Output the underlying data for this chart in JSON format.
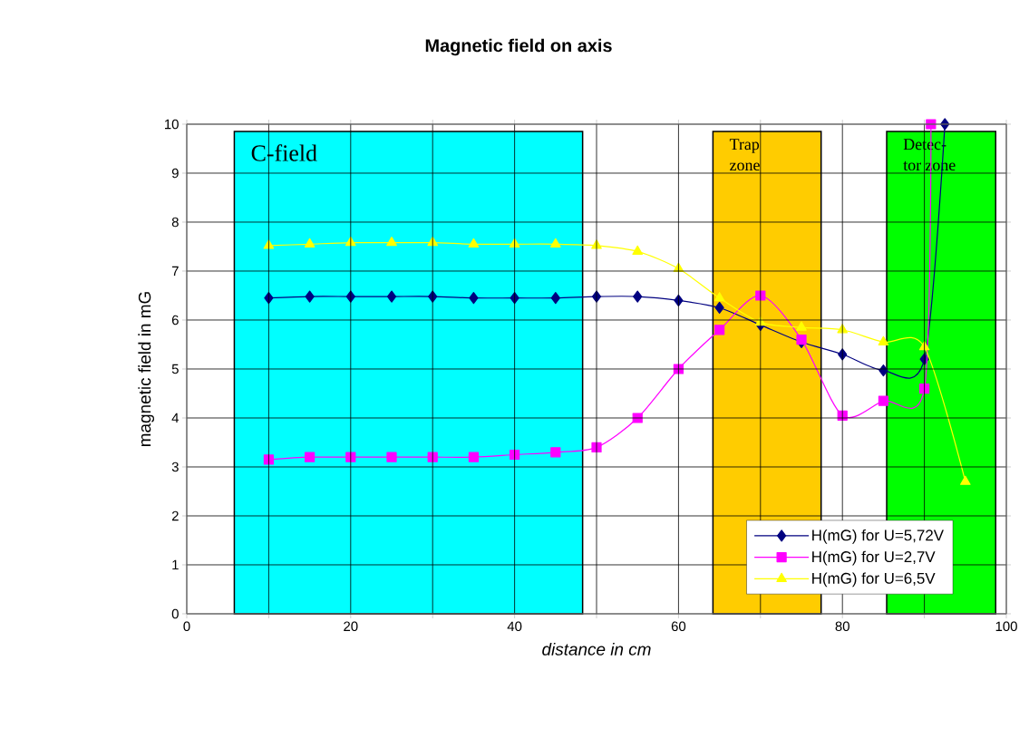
{
  "chart_data": {
    "type": "line",
    "title": "Magnetic field on axis",
    "xlabel": "distance in cm",
    "ylabel": "magnetic field in mG",
    "xlim": [
      0,
      100
    ],
    "ylim": [
      0,
      10
    ],
    "xticks": [
      0,
      {
        "value": 10,
        "label": null
      },
      20,
      {
        "value": 30,
        "label": null
      },
      40,
      {
        "value": 50,
        "label": null
      },
      60,
      {
        "value": 70,
        "label": null
      },
      80,
      {
        "value": 90,
        "label": null
      },
      100
    ],
    "yticks": [
      0,
      1,
      2,
      3,
      4,
      5,
      6,
      7,
      8,
      9,
      10
    ],
    "grid": true,
    "legend": "bottom right",
    "bands": [
      {
        "axis": "x",
        "from": 5.8,
        "to": 48.3,
        "label": "C-field",
        "color": "#00ffff"
      },
      {
        "axis": "x",
        "from": 64.2,
        "to": 77.4,
        "label": "Trap zone",
        "color": "#ffcc00"
      },
      {
        "axis": "x",
        "from": 85.4,
        "to": 98.7,
        "label": "Detec- tor zone",
        "color": "#00ff00"
      }
    ],
    "series": [
      {
        "name": "H(mG) for U=5,72V",
        "color": "#000080",
        "marker": "diamond",
        "x": [
          10,
          15,
          20,
          25,
          30,
          35,
          40,
          45,
          50,
          55,
          60,
          65,
          70,
          75,
          80,
          85,
          90,
          92.5
        ],
        "values": [
          6.45,
          6.48,
          6.48,
          6.48,
          6.48,
          6.45,
          6.45,
          6.45,
          6.48,
          6.48,
          6.4,
          6.25,
          5.9,
          5.55,
          5.3,
          4.97,
          5.2,
          10
        ]
      },
      {
        "name": "H(mG) for U=2,7V",
        "color": "#ff00ff",
        "marker": "square",
        "x": [
          10,
          15,
          20,
          25,
          30,
          35,
          40,
          45,
          50,
          55,
          60,
          65,
          70,
          75,
          80,
          85,
          90,
          90.8
        ],
        "values": [
          3.15,
          3.2,
          3.2,
          3.2,
          3.2,
          3.2,
          3.25,
          3.3,
          3.4,
          4.0,
          5.0,
          5.8,
          6.5,
          5.6,
          4.05,
          4.35,
          4.6,
          10
        ]
      },
      {
        "name": "H(mG) for U=6,5V",
        "color": "#ffff00",
        "marker": "triangle",
        "x": [
          10,
          15,
          20,
          25,
          30,
          35,
          40,
          45,
          50,
          55,
          60,
          65,
          70,
          75,
          80,
          85,
          90,
          95
        ],
        "values": [
          7.52,
          7.55,
          7.58,
          7.58,
          7.58,
          7.55,
          7.55,
          7.55,
          7.52,
          7.4,
          7.05,
          6.45,
          5.95,
          5.85,
          5.8,
          5.55,
          5.45,
          2.7
        ]
      }
    ]
  }
}
